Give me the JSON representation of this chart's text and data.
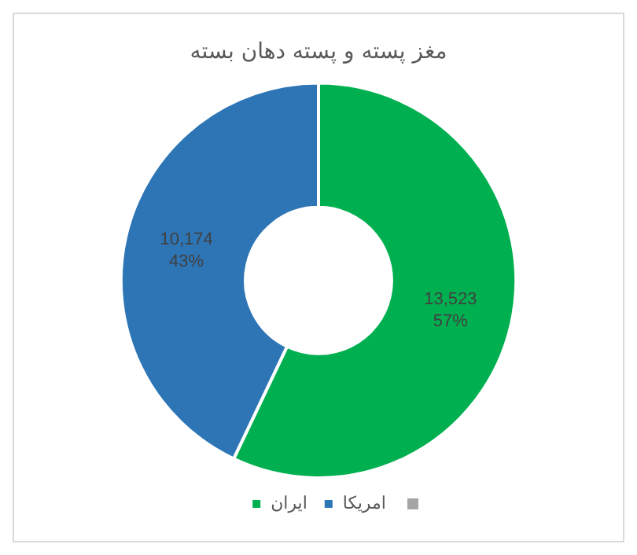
{
  "chart_data": {
    "type": "donut",
    "title": "مغز پسته و پسته دهان بسته",
    "categories": [
      "ایران",
      "امریکا"
    ],
    "values": [
      13523,
      10174
    ],
    "colors": [
      "#00b050",
      "#2e75b6"
    ],
    "value_labels": [
      "13,523\n57%",
      "10,174\n43%"
    ],
    "legend": "bottom"
  }
}
